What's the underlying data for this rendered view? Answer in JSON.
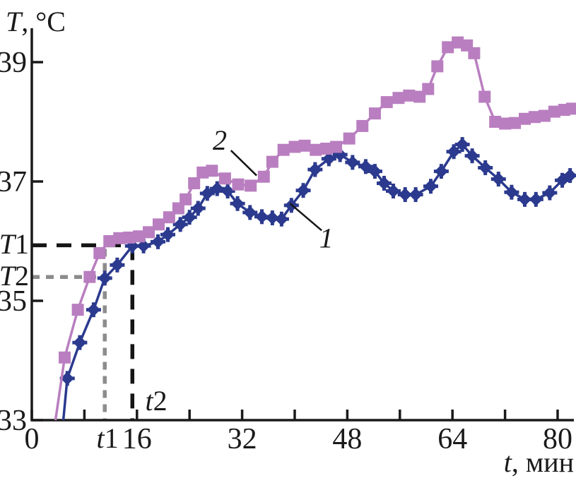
{
  "figure": {
    "y_axis_title": {
      "var": "T",
      "unit": ", °C"
    },
    "x_axis_title": {
      "var": "t",
      "unit": ", мин"
    },
    "guide_labels": {
      "T1": {
        "var": "T",
        "num": "1"
      },
      "T2": {
        "var": "T",
        "num": "2"
      },
      "t1": {
        "var": "t",
        "num": "1"
      },
      "t2": {
        "var": "t",
        "num": "2"
      }
    }
  },
  "colors": {
    "curve1_blue": "#2b3a8e",
    "curve2_purple": "#b97ec0",
    "axis": "#1a1a1a",
    "guide_black": "#151515",
    "guide_gray": "#8c8c8c"
  },
  "chart_data": {
    "type": "line",
    "title": "",
    "xlabel": "t, мин",
    "ylabel": "T, °C",
    "xlim": [
      0,
      82.5
    ],
    "ylim": [
      33,
      39.6
    ],
    "grid": false,
    "x_ticks": [
      {
        "v": 0,
        "label": "0"
      },
      {
        "v": 8
      },
      {
        "v": 16,
        "label": "16"
      },
      {
        "v": 24
      },
      {
        "v": 32,
        "label": "32"
      },
      {
        "v": 40
      },
      {
        "v": 48,
        "label": "48"
      },
      {
        "v": 56
      },
      {
        "v": 64,
        "label": "64"
      },
      {
        "v": 72
      },
      {
        "v": 80,
        "label": "80"
      }
    ],
    "y_ticks": [
      {
        "v": 33,
        "label": "33"
      },
      {
        "v": 35,
        "label": "35"
      },
      {
        "v": 37,
        "label": "37"
      },
      {
        "v": 39,
        "label": "39"
      }
    ],
    "guides": {
      "T1": 35.93,
      "T2": 35.4,
      "t1": 11.1,
      "t2": 15.3,
      "gray_vert_top_T": 35.87,
      "T1_line_style": "black long dashes",
      "T2_line_style": "gray short dashes"
    },
    "series": [
      {
        "name": "1",
        "marker": "diamond",
        "color": "#2b3a8e",
        "points": [
          [
            4.8,
            33.0
          ],
          [
            5.4,
            33.7
          ],
          [
            7.3,
            34.3
          ],
          [
            9.4,
            34.85
          ],
          [
            11.1,
            35.38
          ],
          [
            13.0,
            35.6
          ],
          [
            15.3,
            35.92
          ],
          [
            17.0,
            35.92
          ],
          [
            19.2,
            35.99
          ],
          [
            20.7,
            36.11
          ],
          [
            22.6,
            36.28
          ],
          [
            24.0,
            36.4
          ],
          [
            25.3,
            36.55
          ],
          [
            26.7,
            36.8
          ],
          [
            28.2,
            36.88
          ],
          [
            29.8,
            36.84
          ],
          [
            31.3,
            36.63
          ],
          [
            33.2,
            36.48
          ],
          [
            35.0,
            36.41
          ],
          [
            36.6,
            36.39
          ],
          [
            38.0,
            36.37
          ],
          [
            39.5,
            36.6
          ],
          [
            41.3,
            36.85
          ],
          [
            43.1,
            37.2
          ],
          [
            45.2,
            37.38
          ],
          [
            46.9,
            37.45
          ],
          [
            48.8,
            37.32
          ],
          [
            50.8,
            37.25
          ],
          [
            52.2,
            37.17
          ],
          [
            53.6,
            36.97
          ],
          [
            55.0,
            36.84
          ],
          [
            56.8,
            36.78
          ],
          [
            58.4,
            36.78
          ],
          [
            60.7,
            36.92
          ],
          [
            62.3,
            37.17
          ],
          [
            64.2,
            37.5
          ],
          [
            65.5,
            37.62
          ],
          [
            67.0,
            37.43
          ],
          [
            69.0,
            37.23
          ],
          [
            71.0,
            37.04
          ],
          [
            73.0,
            36.82
          ],
          [
            75.0,
            36.7
          ],
          [
            76.7,
            36.7
          ],
          [
            78.8,
            36.81
          ],
          [
            80.7,
            37.02
          ],
          [
            81.9,
            37.1
          ]
        ]
      },
      {
        "name": "2",
        "marker": "square",
        "color": "#b97ec0",
        "points": [
          [
            3.6,
            33.0
          ],
          [
            5.0,
            34.05
          ],
          [
            7.0,
            34.85
          ],
          [
            8.8,
            35.4
          ],
          [
            10.3,
            35.8
          ],
          [
            11.8,
            36.0
          ],
          [
            13.3,
            36.05
          ],
          [
            14.8,
            36.06
          ],
          [
            16.3,
            36.08
          ],
          [
            17.8,
            36.15
          ],
          [
            19.3,
            36.28
          ],
          [
            20.9,
            36.4
          ],
          [
            22.3,
            36.55
          ],
          [
            23.4,
            36.7
          ],
          [
            24.7,
            36.97
          ],
          [
            26.0,
            37.15
          ],
          [
            27.4,
            37.18
          ],
          [
            29.4,
            37.05
          ],
          [
            31.4,
            36.95
          ],
          [
            33.3,
            36.93
          ],
          [
            35.3,
            37.08
          ],
          [
            36.6,
            37.33
          ],
          [
            38.3,
            37.53
          ],
          [
            40.0,
            37.58
          ],
          [
            41.5,
            37.6
          ],
          [
            43.2,
            37.53
          ],
          [
            44.8,
            37.55
          ],
          [
            46.3,
            37.58
          ],
          [
            48.3,
            37.72
          ],
          [
            50.3,
            37.93
          ],
          [
            52.2,
            38.14
          ],
          [
            54.0,
            38.33
          ],
          [
            55.8,
            38.4
          ],
          [
            57.4,
            38.44
          ],
          [
            59.0,
            38.42
          ],
          [
            60.3,
            38.55
          ],
          [
            61.7,
            38.93
          ],
          [
            63.3,
            39.25
          ],
          [
            64.8,
            39.33
          ],
          [
            66.2,
            39.28
          ],
          [
            67.3,
            39.15
          ],
          [
            68.9,
            38.42
          ],
          [
            70.5,
            38.0
          ],
          [
            72.0,
            37.97
          ],
          [
            73.5,
            37.98
          ],
          [
            75.0,
            38.05
          ],
          [
            76.5,
            38.08
          ],
          [
            78.0,
            38.1
          ],
          [
            79.5,
            38.17
          ],
          [
            81.0,
            38.2
          ],
          [
            82.2,
            38.22
          ]
        ]
      }
    ],
    "annotations": [
      {
        "label": "2",
        "t": 28.6,
        "T": 37.7,
        "line": [
          [
            30.3,
            37.52
          ],
          [
            34.2,
            37.1
          ]
        ]
      },
      {
        "label": "1",
        "t": 44.8,
        "T": 36.06,
        "line": [
          [
            44.1,
            36.18
          ],
          [
            39.3,
            36.63
          ]
        ]
      }
    ]
  }
}
